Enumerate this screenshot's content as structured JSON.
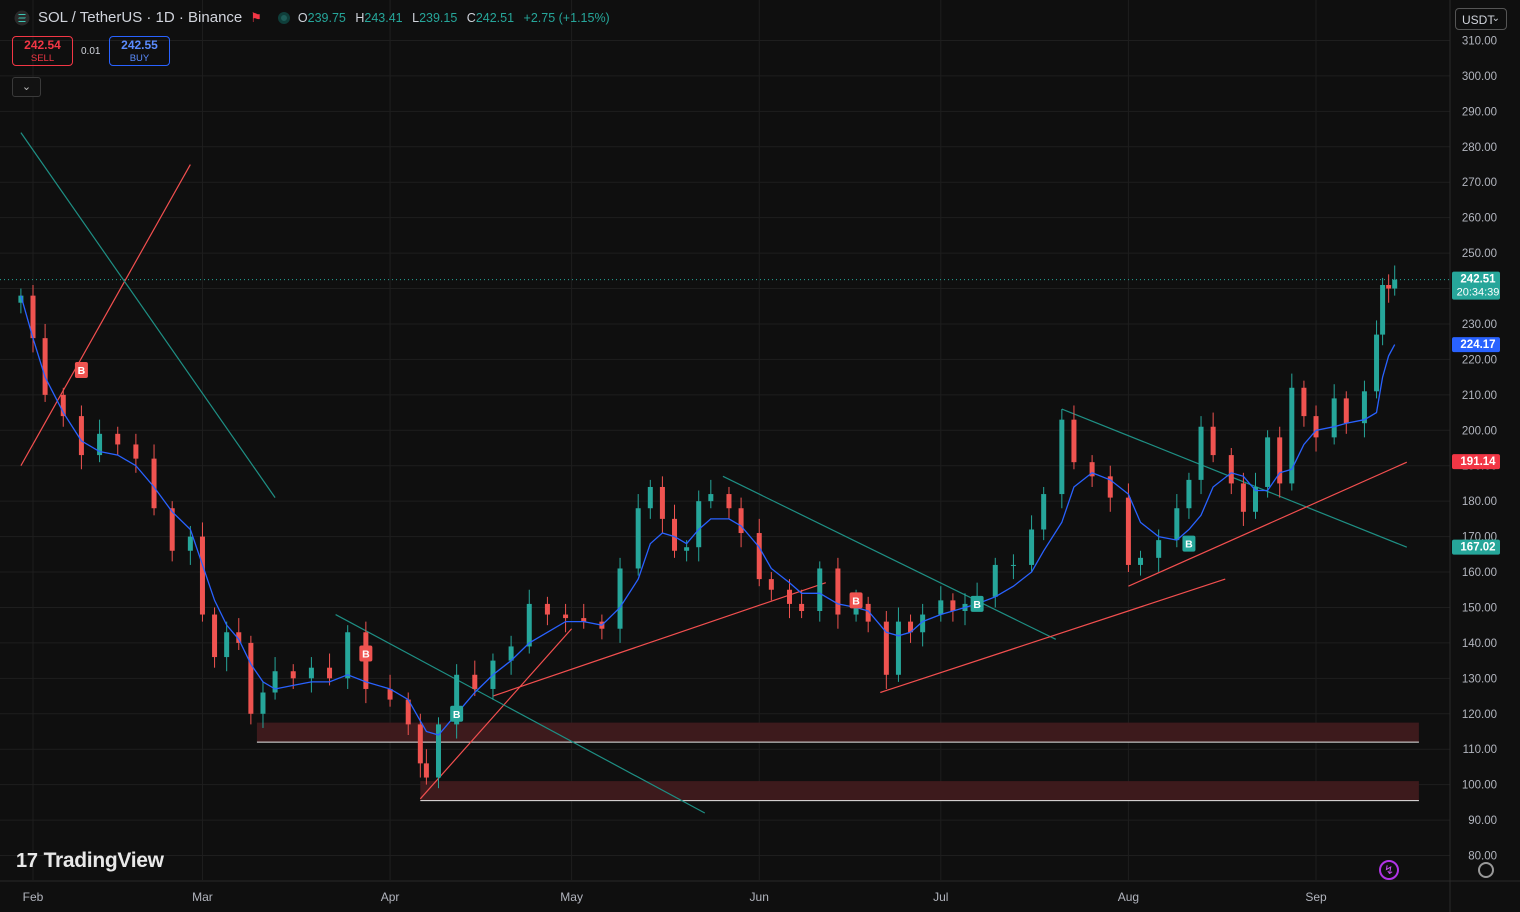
{
  "header": {
    "symbol": "SOL / TetherUS · 1D · Binance",
    "ohlc": {
      "o_label": "O",
      "o": "239.75",
      "h_label": "H",
      "h": "243.41",
      "l_label": "L",
      "l": "239.15",
      "c_label": "C",
      "c": "242.51",
      "change": "+2.75 (+1.15%)"
    }
  },
  "trade": {
    "sell_price": "242.54",
    "sell_label": "SELL",
    "spread": "0.01",
    "buy_price": "242.55",
    "buy_label": "BUY"
  },
  "currency_select": "USDT",
  "brand": "TradingView",
  "icons": {
    "collapse": "chevron-down-icon",
    "currency": "chevron-down-icon",
    "brand": "tradingview-logo-icon",
    "alert": "lightning-icon",
    "settings": "gear-icon",
    "symbol": "solana-logo-icon"
  },
  "colors": {
    "up": "#26a69a",
    "down": "#ef5350",
    "ma": "#2962ff",
    "accent": "#f23645"
  },
  "chart_data": {
    "type": "candlestick",
    "y_ticks": [
      "310.00",
      "300.00",
      "290.00",
      "280.00",
      "270.00",
      "260.00",
      "250.00",
      "240.00",
      "230.00",
      "220.00",
      "210.00",
      "200.00",
      "190.00",
      "180.00",
      "170.00",
      "160.00",
      "150.00",
      "140.00",
      "130.00",
      "120.00",
      "110.00",
      "100.00",
      "90.00",
      "80.00"
    ],
    "ylim": [
      80,
      310
    ],
    "x_ticks": [
      {
        "label": "Feb",
        "date": "2025-02-01"
      },
      {
        "label": "Mar",
        "date": "2025-03-01"
      },
      {
        "label": "Apr",
        "date": "2025-04-01"
      },
      {
        "label": "May",
        "date": "2025-05-01"
      },
      {
        "label": "Jun",
        "date": "2025-06-01"
      },
      {
        "label": "Jul",
        "date": "2025-07-01"
      },
      {
        "label": "Aug",
        "date": "2025-08-01"
      },
      {
        "label": "Sep",
        "date": "2025-09-01"
      }
    ],
    "closes": [
      {
        "date": "2025-01-30",
        "close": 238
      },
      {
        "date": "2025-02-01",
        "close": 226
      },
      {
        "date": "2025-02-03",
        "close": 210
      },
      {
        "date": "2025-02-06",
        "close": 204
      },
      {
        "date": "2025-02-09",
        "close": 193
      },
      {
        "date": "2025-02-12",
        "close": 199
      },
      {
        "date": "2025-02-15",
        "close": 196
      },
      {
        "date": "2025-02-18",
        "close": 192
      },
      {
        "date": "2025-02-21",
        "close": 178
      },
      {
        "date": "2025-02-24",
        "close": 166
      },
      {
        "date": "2025-02-27",
        "close": 170
      },
      {
        "date": "2025-03-01",
        "close": 148
      },
      {
        "date": "2025-03-03",
        "close": 136
      },
      {
        "date": "2025-03-05",
        "close": 143
      },
      {
        "date": "2025-03-07",
        "close": 140
      },
      {
        "date": "2025-03-09",
        "close": 120
      },
      {
        "date": "2025-03-11",
        "close": 126
      },
      {
        "date": "2025-03-13",
        "close": 132
      },
      {
        "date": "2025-03-16",
        "close": 130
      },
      {
        "date": "2025-03-19",
        "close": 133
      },
      {
        "date": "2025-03-22",
        "close": 130
      },
      {
        "date": "2025-03-25",
        "close": 143
      },
      {
        "date": "2025-03-28",
        "close": 127
      },
      {
        "date": "2025-04-01",
        "close": 124
      },
      {
        "date": "2025-04-04",
        "close": 117
      },
      {
        "date": "2025-04-06",
        "close": 106
      },
      {
        "date": "2025-04-07",
        "close": 102
      },
      {
        "date": "2025-04-09",
        "close": 117
      },
      {
        "date": "2025-04-12",
        "close": 131
      },
      {
        "date": "2025-04-15",
        "close": 127
      },
      {
        "date": "2025-04-18",
        "close": 135
      },
      {
        "date": "2025-04-21",
        "close": 139
      },
      {
        "date": "2025-04-24",
        "close": 151
      },
      {
        "date": "2025-04-27",
        "close": 148
      },
      {
        "date": "2025-04-30",
        "close": 147
      },
      {
        "date": "2025-05-03",
        "close": 146
      },
      {
        "date": "2025-05-06",
        "close": 144
      },
      {
        "date": "2025-05-09",
        "close": 161
      },
      {
        "date": "2025-05-12",
        "close": 178
      },
      {
        "date": "2025-05-14",
        "close": 184
      },
      {
        "date": "2025-05-16",
        "close": 175
      },
      {
        "date": "2025-05-18",
        "close": 166
      },
      {
        "date": "2025-05-20",
        "close": 167
      },
      {
        "date": "2025-05-22",
        "close": 180
      },
      {
        "date": "2025-05-24",
        "close": 182
      },
      {
        "date": "2025-05-27",
        "close": 178
      },
      {
        "date": "2025-05-29",
        "close": 171
      },
      {
        "date": "2025-06-01",
        "close": 158
      },
      {
        "date": "2025-06-03",
        "close": 155
      },
      {
        "date": "2025-06-06",
        "close": 151
      },
      {
        "date": "2025-06-08",
        "close": 149
      },
      {
        "date": "2025-06-11",
        "close": 161
      },
      {
        "date": "2025-06-14",
        "close": 148
      },
      {
        "date": "2025-06-17",
        "close": 151
      },
      {
        "date": "2025-06-19",
        "close": 146
      },
      {
        "date": "2025-06-22",
        "close": 131
      },
      {
        "date": "2025-06-24",
        "close": 146
      },
      {
        "date": "2025-06-26",
        "close": 143
      },
      {
        "date": "2025-06-28",
        "close": 148
      },
      {
        "date": "2025-07-01",
        "close": 152
      },
      {
        "date": "2025-07-03",
        "close": 149
      },
      {
        "date": "2025-07-05",
        "close": 151
      },
      {
        "date": "2025-07-07",
        "close": 153
      },
      {
        "date": "2025-07-10",
        "close": 162
      },
      {
        "date": "2025-07-13",
        "close": 162
      },
      {
        "date": "2025-07-16",
        "close": 172
      },
      {
        "date": "2025-07-18",
        "close": 182
      },
      {
        "date": "2025-07-21",
        "close": 203
      },
      {
        "date": "2025-07-23",
        "close": 191
      },
      {
        "date": "2025-07-26",
        "close": 187
      },
      {
        "date": "2025-07-29",
        "close": 181
      },
      {
        "date": "2025-08-01",
        "close": 162
      },
      {
        "date": "2025-08-03",
        "close": 164
      },
      {
        "date": "2025-08-06",
        "close": 169
      },
      {
        "date": "2025-08-09",
        "close": 178
      },
      {
        "date": "2025-08-11",
        "close": 186
      },
      {
        "date": "2025-08-13",
        "close": 201
      },
      {
        "date": "2025-08-15",
        "close": 193
      },
      {
        "date": "2025-08-18",
        "close": 185
      },
      {
        "date": "2025-08-20",
        "close": 177
      },
      {
        "date": "2025-08-22",
        "close": 184
      },
      {
        "date": "2025-08-24",
        "close": 198
      },
      {
        "date": "2025-08-26",
        "close": 185
      },
      {
        "date": "2025-08-28",
        "close": 212
      },
      {
        "date": "2025-08-30",
        "close": 204
      },
      {
        "date": "2025-09-01",
        "close": 198
      },
      {
        "date": "2025-09-04",
        "close": 209
      },
      {
        "date": "2025-09-06",
        "close": 202
      },
      {
        "date": "2025-09-09",
        "close": 211
      },
      {
        "date": "2025-09-11",
        "close": 227
      },
      {
        "date": "2025-09-12",
        "close": 241
      },
      {
        "date": "2025-09-13",
        "close": 240
      },
      {
        "date": "2025-09-14",
        "close": 242.51
      }
    ],
    "ma_series": {
      "values": [
        238,
        226,
        215,
        205,
        197,
        194,
        193,
        190,
        184,
        177,
        172,
        162,
        152,
        145,
        141,
        134,
        129,
        127,
        128,
        129,
        129,
        131,
        129,
        127,
        124,
        118,
        115,
        114,
        120,
        126,
        131,
        135,
        140,
        143,
        146,
        146,
        145,
        150,
        158,
        168,
        171,
        170,
        168,
        172,
        175,
        175,
        173,
        167,
        161,
        157,
        154,
        154,
        151,
        150,
        149,
        143,
        142,
        143,
        146,
        148,
        149,
        150,
        151,
        153,
        156,
        160,
        166,
        174,
        184,
        188,
        186,
        182,
        174,
        170,
        169,
        172,
        176,
        184,
        188,
        187,
        183,
        183,
        188,
        189,
        196,
        200,
        201,
        202,
        203,
        205,
        215,
        221,
        224.17
      ]
    },
    "price_labels": [
      {
        "value": "242.51",
        "text": "242.51",
        "sub": "20:34:39",
        "color": "#26a69a"
      },
      {
        "value": "224.17",
        "text": "224.17",
        "color": "#2962ff"
      },
      {
        "value": "191.14",
        "text": "191.14",
        "color": "#f23645"
      },
      {
        "value": "167.02",
        "text": "167.02",
        "color": "#26a69a"
      }
    ],
    "markers": [
      {
        "date": "2025-02-09",
        "value": 217,
        "text": "B",
        "color": "#ef5350"
      },
      {
        "date": "2025-03-28",
        "value": 137,
        "text": "B",
        "color": "#ef5350"
      },
      {
        "date": "2025-04-12",
        "value": 120,
        "text": "B",
        "color": "#26a69a"
      },
      {
        "date": "2025-06-17",
        "value": 152,
        "text": "B",
        "color": "#ef5350"
      },
      {
        "date": "2025-07-07",
        "value": 151,
        "text": "B",
        "color": "#26a69a"
      },
      {
        "date": "2025-08-11",
        "value": 168,
        "text": "B",
        "color": "#26a69a"
      }
    ],
    "zones": [
      {
        "from": "2025-03-10",
        "to": "2025-09-18",
        "low": 112,
        "high": 117.5
      },
      {
        "from": "2025-04-06",
        "to": "2025-09-18",
        "low": 95.5,
        "high": 101
      }
    ],
    "trendlines": [
      {
        "color": "#f24f4f",
        "from": {
          "date": "2025-01-30",
          "value": 190
        },
        "to": {
          "date": "2025-02-27",
          "value": 275
        }
      },
      {
        "color": "#1e8f84",
        "from": {
          "date": "2025-01-30",
          "value": 284
        },
        "to": {
          "date": "2025-03-13",
          "value": 181
        }
      },
      {
        "color": "#f24f4f",
        "from": {
          "date": "2025-04-06",
          "value": 96
        },
        "to": {
          "date": "2025-05-01",
          "value": 144
        }
      },
      {
        "color": "#1e8f84",
        "from": {
          "date": "2025-03-23",
          "value": 148
        },
        "to": {
          "date": "2025-05-23",
          "value": 92
        }
      },
      {
        "color": "#f24f4f",
        "from": {
          "date": "2025-04-18",
          "value": 125
        },
        "to": {
          "date": "2025-06-12",
          "value": 157
        }
      },
      {
        "color": "#1e8f84",
        "from": {
          "date": "2025-05-26",
          "value": 187
        },
        "to": {
          "date": "2025-07-20",
          "value": 141
        }
      },
      {
        "color": "#f24f4f",
        "from": {
          "date": "2025-06-21",
          "value": 126
        },
        "to": {
          "date": "2025-08-17",
          "value": 158
        }
      },
      {
        "color": "#1e8f84",
        "from": {
          "date": "2025-07-21",
          "value": 206
        },
        "to": {
          "date": "2025-09-16",
          "value": 167
        }
      },
      {
        "color": "#f24f4f",
        "from": {
          "date": "2025-08-01",
          "value": 156
        },
        "to": {
          "date": "2025-09-16",
          "value": 191
        }
      }
    ],
    "last_price": 242.51,
    "grid": true
  }
}
